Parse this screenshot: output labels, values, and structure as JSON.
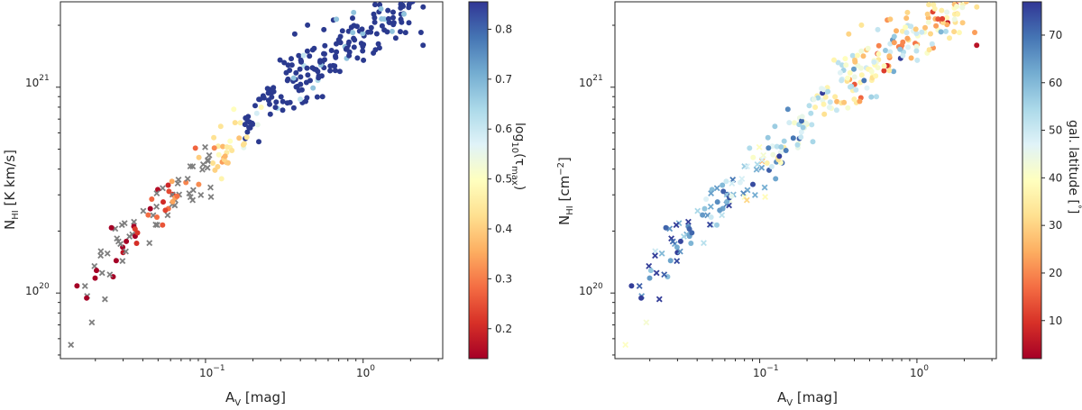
{
  "chart_data": [
    {
      "type": "scatter",
      "title": "",
      "xlabel": "A",
      "xlabel_sub": "V",
      "xlabel_unit": "[mag]",
      "ylabel": "N",
      "ylabel_sub": "HI",
      "ylabel_unit": "[K km/s]",
      "xscale": "log",
      "yscale": "log",
      "xlim": [
        0.012,
        3.2
      ],
      "ylim": [
        4.8e+19,
        2.6e+21
      ],
      "xticks": [
        {
          "value": 0.1,
          "label": "10",
          "exp": "−1"
        },
        {
          "value": 1.0,
          "label": "10",
          "exp": "0"
        }
      ],
      "yticks": [
        {
          "value": 1e+20,
          "label": "10",
          "exp": "20"
        },
        {
          "value": 1e+21,
          "label": "10",
          "exp": "21"
        }
      ],
      "colorbar": {
        "label": "log",
        "label_sub": "10",
        "label_rest": "(τ",
        "label_rest_sub": "max",
        "label_end": ")",
        "colormap": "RdYlBu",
        "range": [
          0.14,
          0.855
        ],
        "ticks": [
          "0.2",
          "0.3",
          "0.4",
          "0.5",
          "0.6",
          "0.7",
          "0.8"
        ]
      },
      "point_color_high": "#2b3a8f",
      "x_marker_color": "#7f7f7f",
      "seed": 11
    },
    {
      "type": "scatter",
      "title": "",
      "xlabel": "A",
      "xlabel_sub": "V",
      "xlabel_unit": "[mag]",
      "ylabel": "N",
      "ylabel_sub": "HI",
      "ylabel_unit": "[cm",
      "ylabel_unit_sup": "−2",
      "ylabel_unit_end": "]",
      "xscale": "log",
      "yscale": "log",
      "xlim": [
        0.012,
        3.2
      ],
      "ylim": [
        4.8e+19,
        2.6e+21
      ],
      "xticks": [
        {
          "value": 0.1,
          "label": "10",
          "exp": "−1"
        },
        {
          "value": 1.0,
          "label": "10",
          "exp": "0"
        }
      ],
      "yticks": [
        {
          "value": 1e+20,
          "label": "10",
          "exp": "20"
        },
        {
          "value": 1e+21,
          "label": "10",
          "exp": "21"
        }
      ],
      "colorbar": {
        "label": "gal. latitude [",
        "label_sup": "°",
        "label_end": "]",
        "colormap": "RdYlBu",
        "range": [
          2,
          77
        ],
        "ticks": [
          "10",
          "20",
          "30",
          "40",
          "50",
          "60",
          "70"
        ]
      },
      "seed": 11
    }
  ]
}
